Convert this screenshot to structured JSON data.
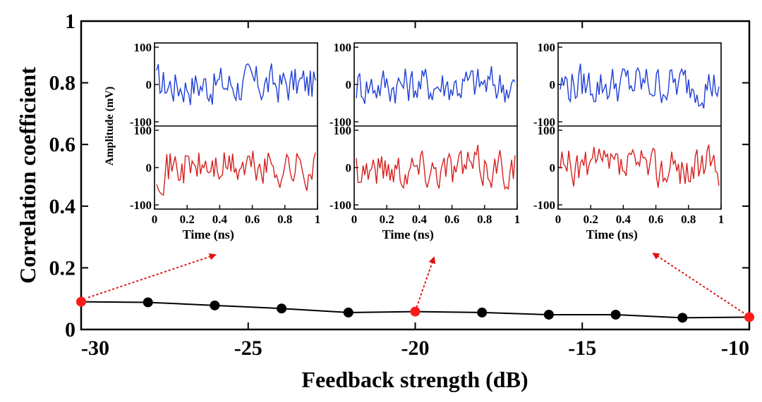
{
  "chart_data": {
    "type": "line",
    "xlabel": "Feedback strength (dB)",
    "ylabel": "Correlation coefficient",
    "xlim": [
      -30,
      -10
    ],
    "ylim": [
      0,
      1
    ],
    "xticks": [
      -30,
      -25,
      -20,
      -15,
      -10
    ],
    "yticks": [
      0,
      0.2,
      0.4,
      0.6,
      0.8,
      1
    ],
    "xtick_labels": [
      "-30",
      "-25",
      "-20",
      "-15",
      "-10"
    ],
    "ytick_labels": [
      "0",
      "0.2",
      "0.4",
      "0.6",
      "0.8",
      "1"
    ],
    "grid": false,
    "series": [
      {
        "color": "#000000",
        "x": [
          -30,
          -28,
          -26,
          -24,
          -22,
          -20,
          -18,
          -16,
          -14,
          -12,
          -10
        ],
        "y": [
          0.09,
          0.088,
          0.078,
          0.068,
          0.055,
          0.058,
          0.055,
          0.048,
          0.048,
          0.038,
          0.04
        ],
        "highlight_points": [
          -30,
          -20,
          -10
        ],
        "highlight_color": "#ff1a1a"
      }
    ],
    "insets": [
      {
        "source_x": -30,
        "xlabel": "Time (ns)",
        "ylabel": "Amplitude (mV)",
        "xlim": [
          0,
          1
        ],
        "xtick_labels": [
          "0",
          "0.2",
          "0.4",
          "0.6",
          "0.8",
          "1"
        ],
        "top_panel": {
          "ylim": [
            -100,
            100
          ],
          "ytick_labels": [
            "100",
            "0",
            "-100"
          ],
          "color": "#1f3fd6"
        },
        "bottom_panel": {
          "ylim": [
            -100,
            100
          ],
          "ytick_labels": [
            "100",
            "0",
            "-100"
          ],
          "color": "#d62020"
        }
      },
      {
        "source_x": -20,
        "xlabel": "Time (ns)",
        "ylabel": "",
        "xlim": [
          0,
          1
        ],
        "xtick_labels": [
          "0",
          "0.2",
          "0.4",
          "0.6",
          "0.8",
          "1"
        ],
        "top_panel": {
          "ylim": [
            -100,
            100
          ],
          "ytick_labels": [
            "100",
            "0",
            "-100"
          ],
          "color": "#1f3fd6"
        },
        "bottom_panel": {
          "ylim": [
            -100,
            100
          ],
          "ytick_labels": [
            "100",
            "0",
            "-100"
          ],
          "color": "#d62020"
        }
      },
      {
        "source_x": -10,
        "xlabel": "Time (ns)",
        "ylabel": "",
        "xlim": [
          0,
          1
        ],
        "xtick_labels": [
          "0",
          "0.2",
          "0.4",
          "0.6",
          "0.8",
          "1"
        ],
        "top_panel": {
          "ylim": [
            -100,
            100
          ],
          "ytick_labels": [
            "100",
            "0",
            "-100"
          ],
          "color": "#1f3fd6"
        },
        "bottom_panel": {
          "ylim": [
            -100,
            100
          ],
          "ytick_labels": [
            "100",
            "0",
            "-100"
          ],
          "color": "#d62020"
        }
      }
    ]
  }
}
